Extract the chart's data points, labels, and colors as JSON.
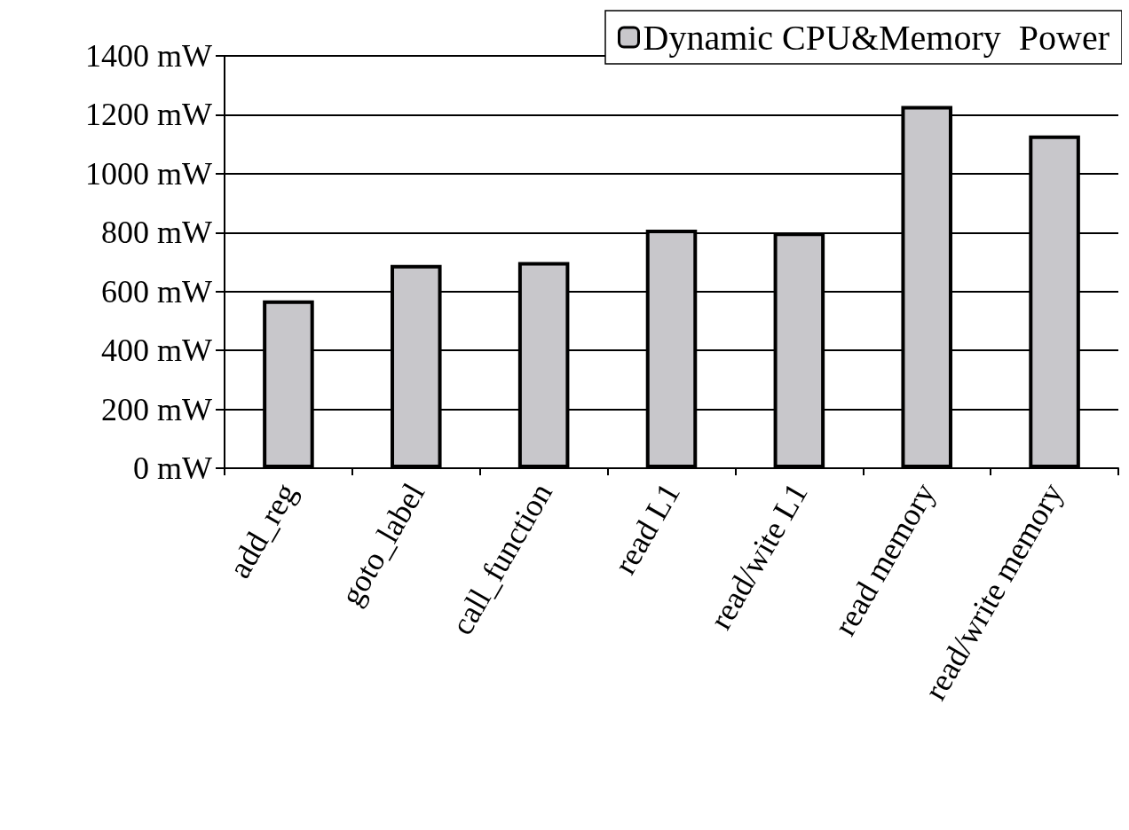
{
  "chart_data": {
    "type": "bar",
    "categories": [
      "add_reg",
      "goto_label",
      "call_function",
      "read L1",
      "read/wite L1",
      "read memory",
      "read/write memory"
    ],
    "series": [
      {
        "name": "Dynamic CPU&Memory  Power",
        "color": "#c8c7cb",
        "values": [
          570,
          690,
          700,
          810,
          800,
          1230,
          1130
        ]
      }
    ],
    "ylim": [
      0,
      1400
    ],
    "yticks": [
      {
        "value": 0,
        "label": "0 mW"
      },
      {
        "value": 200,
        "label": "200 mW"
      },
      {
        "value": 400,
        "label": "400 mW"
      },
      {
        "value": 600,
        "label": "600 mW"
      },
      {
        "value": 800,
        "label": "800 mW"
      },
      {
        "value": 1000,
        "label": "1000 mW"
      },
      {
        "value": 1200,
        "label": "1200 mW"
      },
      {
        "value": 1400,
        "label": "1400 mW"
      }
    ],
    "grid": "y",
    "legend": "top right"
  }
}
